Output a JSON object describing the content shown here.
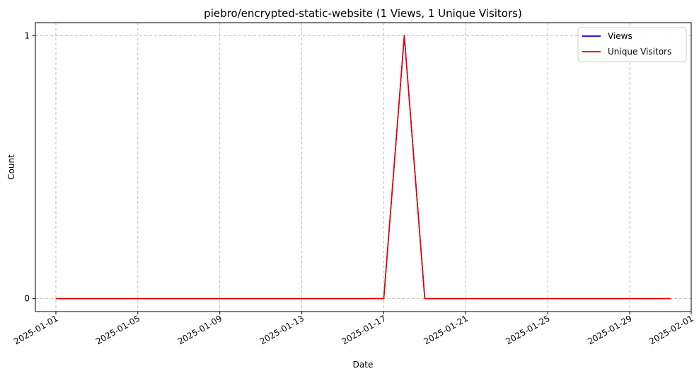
{
  "chart_data": {
    "type": "line",
    "title": "piebro/encrypted-static-website (1 Views, 1 Unique Visitors)",
    "xlabel": "Date",
    "ylabel": "Count",
    "x": [
      "2025-01-01",
      "2025-01-02",
      "2025-01-03",
      "2025-01-04",
      "2025-01-05",
      "2025-01-06",
      "2025-01-07",
      "2025-01-08",
      "2025-01-09",
      "2025-01-10",
      "2025-01-11",
      "2025-01-12",
      "2025-01-13",
      "2025-01-14",
      "2025-01-15",
      "2025-01-16",
      "2025-01-17",
      "2025-01-18",
      "2025-01-19",
      "2025-01-20",
      "2025-01-21",
      "2025-01-22",
      "2025-01-23",
      "2025-01-24",
      "2025-01-25",
      "2025-01-26",
      "2025-01-27",
      "2025-01-28",
      "2025-01-29",
      "2025-01-30",
      "2025-01-31"
    ],
    "series": [
      {
        "name": "Views",
        "color": "#0000cc",
        "values": [
          0,
          0,
          0,
          0,
          0,
          0,
          0,
          0,
          0,
          0,
          0,
          0,
          0,
          0,
          0,
          0,
          0,
          1,
          0,
          0,
          0,
          0,
          0,
          0,
          0,
          0,
          0,
          0,
          0,
          0,
          0
        ]
      },
      {
        "name": "Unique Visitors",
        "color": "#ee0000",
        "values": [
          0,
          0,
          0,
          0,
          0,
          0,
          0,
          0,
          0,
          0,
          0,
          0,
          0,
          0,
          0,
          0,
          0,
          1,
          0,
          0,
          0,
          0,
          0,
          0,
          0,
          0,
          0,
          0,
          0,
          0,
          0
        ]
      }
    ],
    "xticks": [
      "2025-01-01",
      "2025-01-05",
      "2025-01-09",
      "2025-01-13",
      "2025-01-17",
      "2025-01-21",
      "2025-01-25",
      "2025-01-29",
      "2025-02-01"
    ],
    "yticks": [
      "0",
      "1"
    ],
    "xlim": [
      "2024-12-31",
      "2025-02-01"
    ],
    "ylim": [
      0,
      1
    ],
    "grid": true,
    "legend_position": "top-right"
  }
}
